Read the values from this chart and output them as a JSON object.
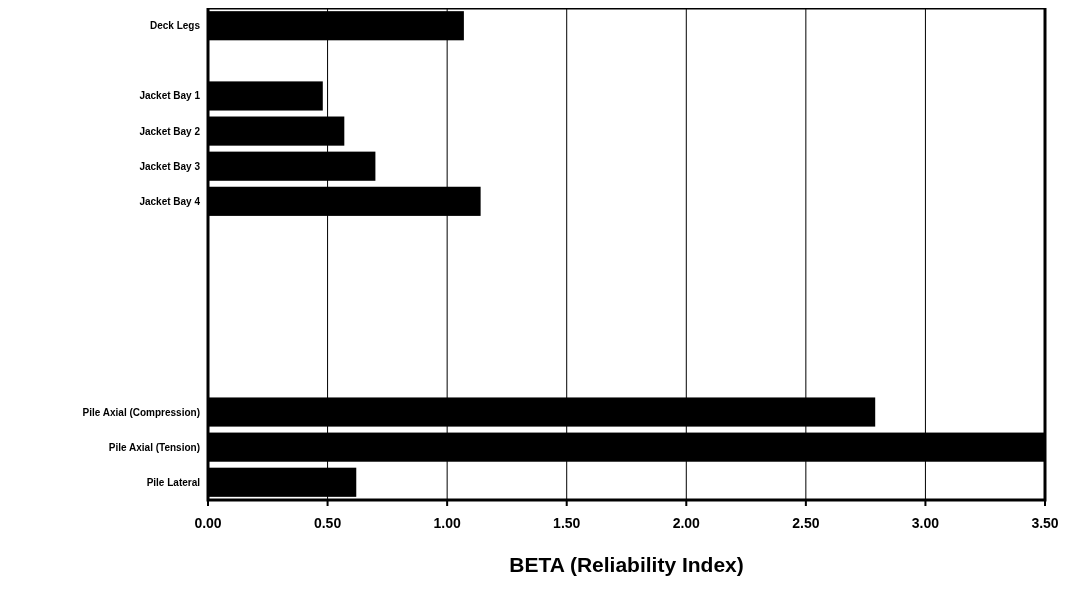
{
  "chart_data": {
    "type": "bar",
    "orientation": "horizontal",
    "xlabel": "BETA (Reliability Index)",
    "categories": [
      "Deck Legs",
      null,
      "Jacket Bay 1",
      "Jacket Bay 2",
      "Jacket Bay 3",
      "Jacket Bay 4",
      null,
      null,
      null,
      null,
      null,
      "Pile Axial (Compression)",
      "Pile Axial (Tension)",
      "Pile Lateral"
    ],
    "values": [
      1.07,
      null,
      0.48,
      0.57,
      0.7,
      1.14,
      null,
      null,
      null,
      null,
      null,
      2.79,
      3.5,
      0.62
    ],
    "color": "#000000",
    "xlim": [
      0,
      3.5
    ],
    "xticks": [
      {
        "value": 0,
        "label": "0.00"
      },
      {
        "value": 0.5,
        "label": "0.50"
      },
      {
        "value": 1,
        "label": "1.00"
      },
      {
        "value": 1.5,
        "label": "1.50"
      },
      {
        "value": 2,
        "label": "2.00"
      },
      {
        "value": 2.5,
        "label": "2.50"
      },
      {
        "value": 3,
        "label": "3.00"
      },
      {
        "value": 3.5,
        "label": "3.50"
      }
    ],
    "grid": "x"
  }
}
